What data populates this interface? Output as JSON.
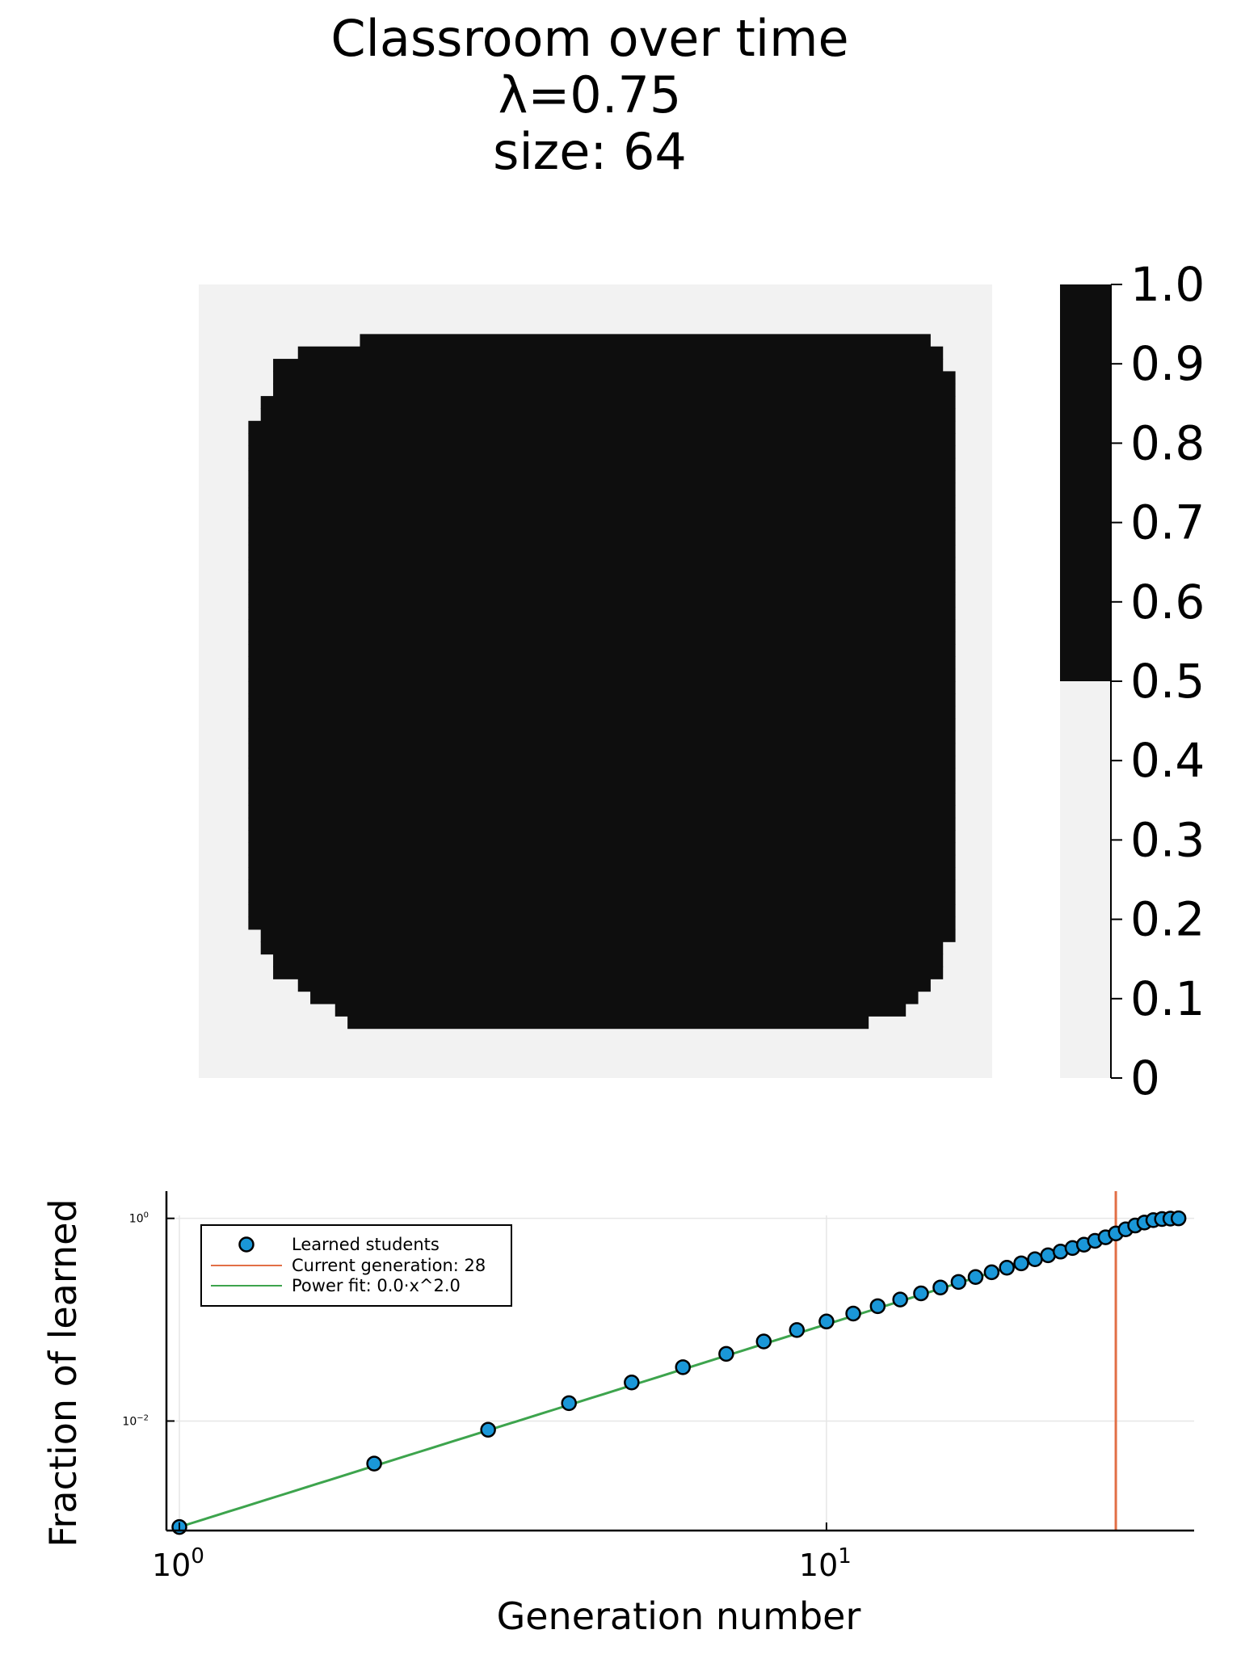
{
  "chart_data": [
    {
      "type": "heatmap",
      "title_lines": [
        "Classroom over time",
        "λ=0.75",
        "size: 64"
      ],
      "grid_size": 64,
      "value_range": [
        0,
        1
      ],
      "colorbar": {
        "ticks": [
          "0",
          "0.1",
          "0.2",
          "0.3",
          "0.4",
          "0.5",
          "0.6",
          "0.7",
          "0.8",
          "0.9",
          "1.0"
        ],
        "threshold": 0.5,
        "low_color": "#f2f2f2",
        "high_color": "#0e0e0e"
      },
      "learned_rows": [
        [
          null,
          null
        ],
        [
          null,
          null
        ],
        [
          null,
          null
        ],
        [
          null,
          null
        ],
        [
          13,
          58
        ],
        [
          8,
          59
        ],
        [
          6,
          59
        ],
        [
          6,
          60
        ],
        [
          6,
          60
        ],
        [
          5,
          60
        ],
        [
          5,
          60
        ],
        [
          4,
          60
        ],
        [
          4,
          60
        ],
        [
          4,
          60
        ],
        [
          4,
          60
        ],
        [
          4,
          60
        ],
        [
          4,
          60
        ],
        [
          4,
          60
        ],
        [
          4,
          60
        ],
        [
          4,
          60
        ],
        [
          4,
          60
        ],
        [
          4,
          60
        ],
        [
          4,
          60
        ],
        [
          4,
          60
        ],
        [
          4,
          60
        ],
        [
          4,
          60
        ],
        [
          4,
          60
        ],
        [
          4,
          60
        ],
        [
          4,
          60
        ],
        [
          4,
          60
        ],
        [
          4,
          60
        ],
        [
          4,
          60
        ],
        [
          4,
          60
        ],
        [
          4,
          60
        ],
        [
          4,
          60
        ],
        [
          4,
          60
        ],
        [
          4,
          60
        ],
        [
          4,
          60
        ],
        [
          4,
          60
        ],
        [
          4,
          60
        ],
        [
          4,
          60
        ],
        [
          4,
          60
        ],
        [
          4,
          60
        ],
        [
          4,
          60
        ],
        [
          4,
          60
        ],
        [
          4,
          60
        ],
        [
          4,
          60
        ],
        [
          4,
          60
        ],
        [
          4,
          60
        ],
        [
          4,
          60
        ],
        [
          4,
          60
        ],
        [
          4,
          60
        ],
        [
          5,
          60
        ],
        [
          5,
          59
        ],
        [
          6,
          59
        ],
        [
          6,
          59
        ],
        [
          8,
          58
        ],
        [
          9,
          57
        ],
        [
          11,
          56
        ],
        [
          12,
          53
        ],
        [
          null,
          null
        ],
        [
          null,
          null
        ],
        [
          null,
          null
        ],
        [
          null,
          null
        ]
      ]
    },
    {
      "type": "scatter",
      "xlabel": "Generation number",
      "ylabel": "Fraction of learned",
      "x_scale": "log",
      "y_scale": "log",
      "x_ticks": [
        {
          "value": 1,
          "base": "10",
          "exp": "0"
        },
        {
          "value": 10,
          "base": "10",
          "exp": "1"
        }
      ],
      "y_ticks": [
        {
          "value": 1,
          "base": "10",
          "exp": "0"
        },
        {
          "value": 0.01,
          "base": "10",
          "exp": "−2"
        }
      ],
      "xlim": [
        0.955,
        37
      ],
      "ylim": [
        0.00083,
        1.07
      ],
      "grid": true,
      "legend_position": "top-left",
      "series": [
        {
          "name": "Learned students",
          "kind": "points",
          "color": "#1a97d8",
          "x": [
            1,
            2,
            3,
            4,
            5,
            6,
            7,
            8,
            9,
            10,
            11,
            12,
            13,
            14,
            15,
            16,
            17,
            18,
            19,
            20,
            21,
            22,
            23,
            24,
            25,
            26,
            27,
            28,
            29,
            30,
            31,
            32,
            33,
            34,
            35
          ],
          "y": [
            0.0009,
            0.0038,
            0.0082,
            0.015,
            0.024,
            0.034,
            0.046,
            0.061,
            0.079,
            0.096,
            0.115,
            0.136,
            0.158,
            0.182,
            0.208,
            0.236,
            0.264,
            0.294,
            0.326,
            0.36,
            0.395,
            0.432,
            0.47,
            0.51,
            0.55,
            0.6,
            0.65,
            0.71,
            0.78,
            0.85,
            0.91,
            0.96,
            0.985,
            0.995,
            1.0
          ]
        },
        {
          "name": "Current generation: 28",
          "kind": "vline",
          "color": "#e26f46",
          "x": 28
        },
        {
          "name": "Power fit: 0.0·x^2.0",
          "kind": "fit",
          "color": "#3da44d",
          "coefficient": 0.0009,
          "exponent": 2.0,
          "x_range": [
            1,
            35
          ]
        }
      ]
    }
  ]
}
